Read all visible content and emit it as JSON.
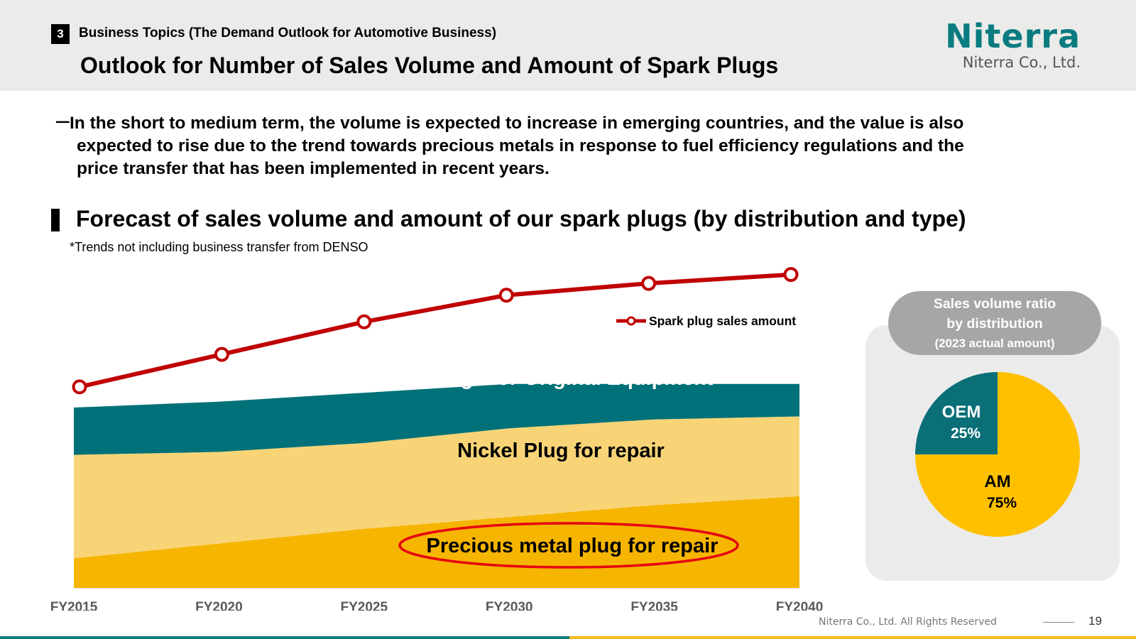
{
  "header": {
    "section_number": "3",
    "section_title": "Business Topics (The Demand Outlook for Automotive Business)",
    "page_title": "Outlook for Number of Sales Volume and Amount of Spark Plugs",
    "logo_text": "Niterra",
    "logo_subtitle": "Niterra Co., Ltd."
  },
  "bullet": {
    "dash": "－",
    "line1": "In the short to medium term, the volume is expected to increase in emerging countries, and the value is also",
    "line2": "expected to rise due to the trend towards precious metals in response to fuel efficiency regulations and the",
    "line3": "price transfer that has been implemented in recent years."
  },
  "subheading": "Forecast of sales volume and amount of our spark plugs (by distribution and type)",
  "note": "*Trends not including business transfer from DENSO",
  "colors": {
    "teal": "#007178",
    "light_yellow": "#f8d477",
    "gold": "#f6b500",
    "red_line": "#c00000",
    "pie_am": "#ffc000",
    "pie_oem": "#0a6f77"
  },
  "chart_data": [
    {
      "type": "area",
      "stacked": true,
      "x": [
        "FY2015",
        "FY2020",
        "FY2025",
        "FY2030",
        "FY2035",
        "FY2040"
      ],
      "series": [
        {
          "name": "Precious metal plug for repair",
          "values": [
            10,
            15,
            20,
            24,
            28,
            31
          ]
        },
        {
          "name": "Nickel Plug for repair",
          "values": [
            35,
            31,
            29,
            30,
            29,
            27
          ]
        },
        {
          "name": "Plugs for Original Equipment",
          "values": [
            16,
            17,
            17,
            15,
            12,
            11
          ]
        }
      ],
      "line_series": {
        "name": "Spark plug sales amount",
        "values": [
          68,
          79,
          90,
          99,
          103,
          106
        ]
      },
      "ylim": [
        0,
        110
      ],
      "legend": "top-right",
      "grid": false
    },
    {
      "type": "pie",
      "title_line1": "Sales volume ratio",
      "title_line2": "by distribution",
      "title_line3": "(2023 actual amount)",
      "slices": [
        {
          "label": "AM",
          "value": 75,
          "display": "75%"
        },
        {
          "label": "OEM",
          "value": 25,
          "display": "25%"
        }
      ]
    }
  ],
  "footer": {
    "copyright": "Niterra Co., Ltd. All Rights Reserved",
    "page_number": "19"
  }
}
